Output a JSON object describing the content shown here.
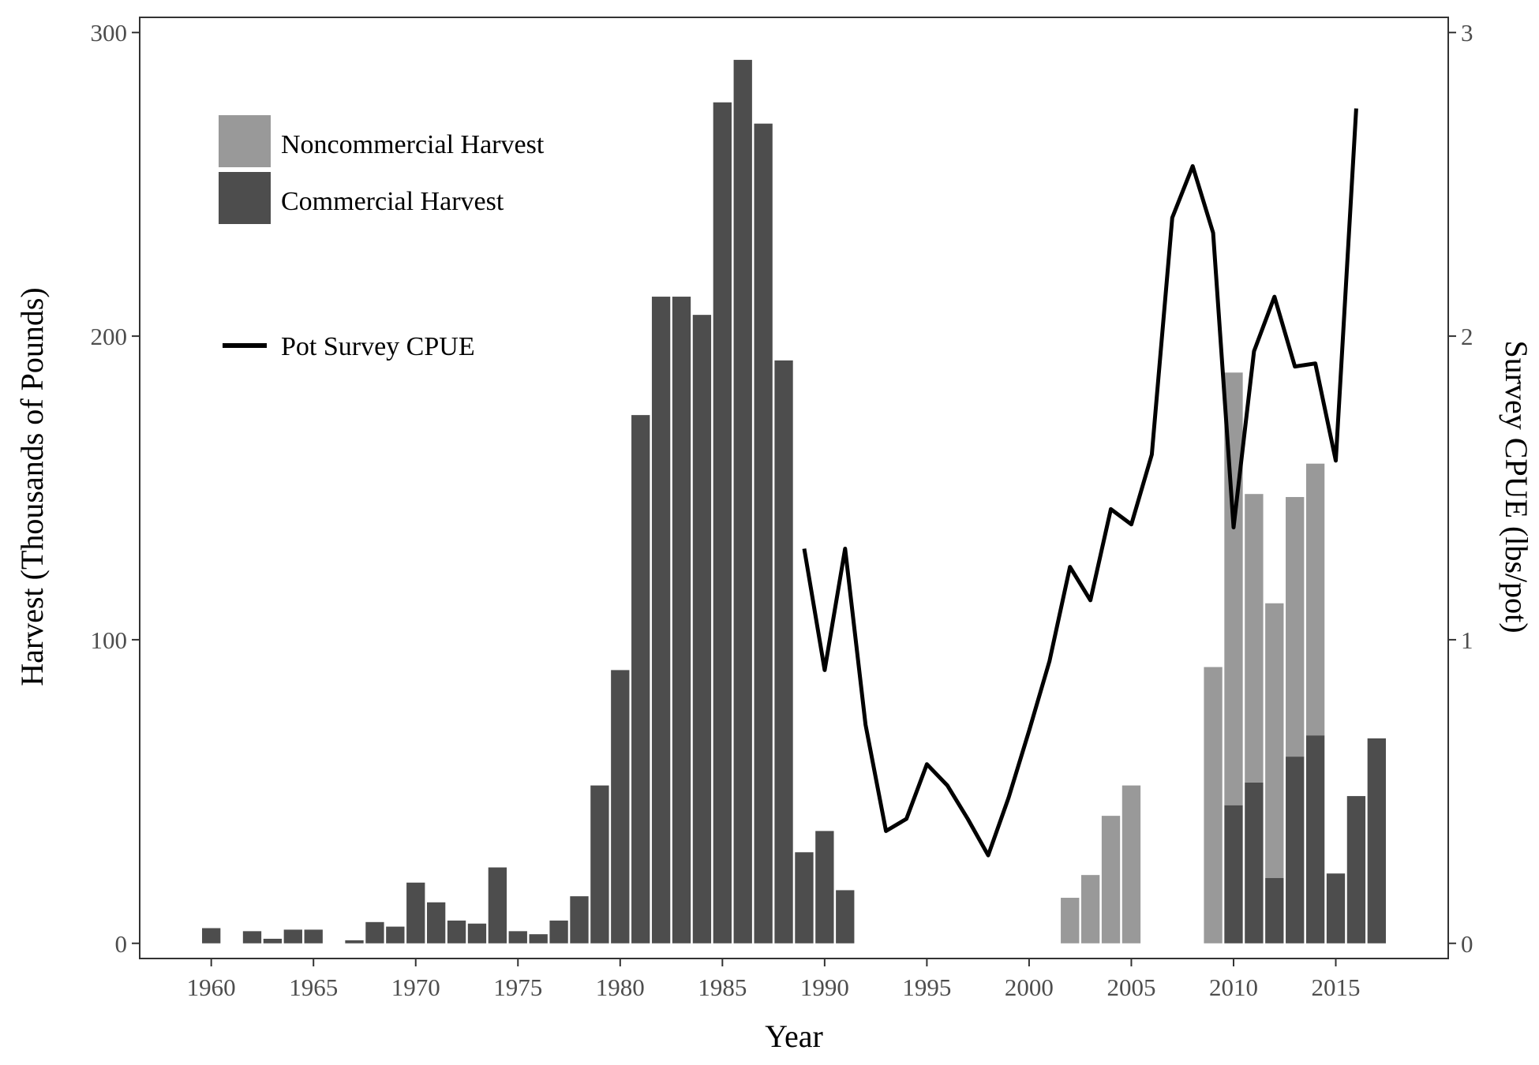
{
  "chart_data": {
    "type": "bar",
    "xlabel": "Year",
    "ylabel": "Harvest (Thousands of Pounds)",
    "y2label": "Survey CPUE (lbs/pot)",
    "xlim": [
      1956.5,
      2020.5
    ],
    "ylim": [
      -5,
      305
    ],
    "y2lim": [
      -0.05,
      3.05
    ],
    "x_ticks": [
      1960,
      1965,
      1970,
      1975,
      1980,
      1985,
      1990,
      1995,
      2000,
      2005,
      2010,
      2015
    ],
    "y_ticks": [
      0,
      100,
      200,
      300
    ],
    "y2_ticks": [
      0,
      1,
      2,
      3
    ],
    "grid": false,
    "legend_position": "top-left",
    "legend": [
      {
        "label": "Noncommercial Harvest",
        "color": "#999999",
        "kind": "bar"
      },
      {
        "label": "Commercial Harvest",
        "color": "#4d4d4d",
        "kind": "bar"
      },
      {
        "label": "Pot Survey CPUE",
        "color": "#000000",
        "kind": "line"
      }
    ],
    "series": [
      {
        "name": "Commercial Harvest",
        "color": "#4d4d4d",
        "axis": "left",
        "points": [
          [
            1960,
            5
          ],
          [
            1962,
            4
          ],
          [
            1963,
            1.5
          ],
          [
            1964,
            4.5
          ],
          [
            1965,
            4.5
          ],
          [
            1967,
            1
          ],
          [
            1968,
            7
          ],
          [
            1969,
            5.5
          ],
          [
            1970,
            20
          ],
          [
            1971,
            13.5
          ],
          [
            1972,
            7.5
          ],
          [
            1973,
            6.5
          ],
          [
            1974,
            25
          ],
          [
            1975,
            4
          ],
          [
            1976,
            3
          ],
          [
            1977,
            7.5
          ],
          [
            1978,
            15.5
          ],
          [
            1979,
            52
          ],
          [
            1980,
            90
          ],
          [
            1981,
            174
          ],
          [
            1982,
            213
          ],
          [
            1983,
            213
          ],
          [
            1984,
            207
          ],
          [
            1985,
            277
          ],
          [
            1986,
            291
          ],
          [
            1987,
            270
          ],
          [
            1988,
            192
          ],
          [
            1989,
            30
          ],
          [
            1990,
            37
          ],
          [
            1991,
            17.5
          ],
          [
            2010,
            45.5
          ],
          [
            2011,
            53
          ],
          [
            2012,
            21.5
          ],
          [
            2013,
            61.5
          ],
          [
            2014,
            68.5
          ],
          [
            2015,
            23
          ],
          [
            2016,
            48.5
          ],
          [
            2017,
            67.5
          ]
        ]
      },
      {
        "name": "Noncommercial Harvest",
        "color": "#999999",
        "axis": "left",
        "points": [
          [
            2002,
            15
          ],
          [
            2003,
            22.5
          ],
          [
            2004,
            42
          ],
          [
            2005,
            52
          ],
          [
            2009,
            91
          ],
          [
            2010,
            188
          ],
          [
            2011,
            148
          ],
          [
            2012,
            112
          ],
          [
            2013,
            147
          ],
          [
            2014,
            158
          ]
        ]
      },
      {
        "name": "Pot Survey CPUE",
        "color": "#000000",
        "axis": "right",
        "type": "line",
        "points": [
          [
            1989,
            1.3
          ],
          [
            1990,
            0.9
          ],
          [
            1991,
            1.3
          ],
          [
            1992,
            0.72
          ],
          [
            1993,
            0.37
          ],
          [
            1994,
            0.41
          ],
          [
            1995,
            0.59
          ],
          [
            1996,
            0.52
          ],
          [
            1997,
            0.41
          ],
          [
            1998,
            0.29
          ],
          [
            1999,
            0.48
          ],
          [
            2000,
            0.7
          ],
          [
            2001,
            0.93
          ],
          [
            2002,
            1.24
          ],
          [
            2003,
            1.13
          ],
          [
            2004,
            1.43
          ],
          [
            2005,
            1.38
          ],
          [
            2006,
            1.61
          ],
          [
            2007,
            2.39
          ],
          [
            2008,
            2.56
          ],
          [
            2009,
            2.34
          ],
          [
            2010,
            1.37
          ],
          [
            2011,
            1.95
          ],
          [
            2012,
            2.13
          ],
          [
            2013,
            1.9
          ],
          [
            2014,
            1.91
          ],
          [
            2015,
            1.59
          ],
          [
            2016,
            2.75
          ]
        ]
      }
    ]
  }
}
